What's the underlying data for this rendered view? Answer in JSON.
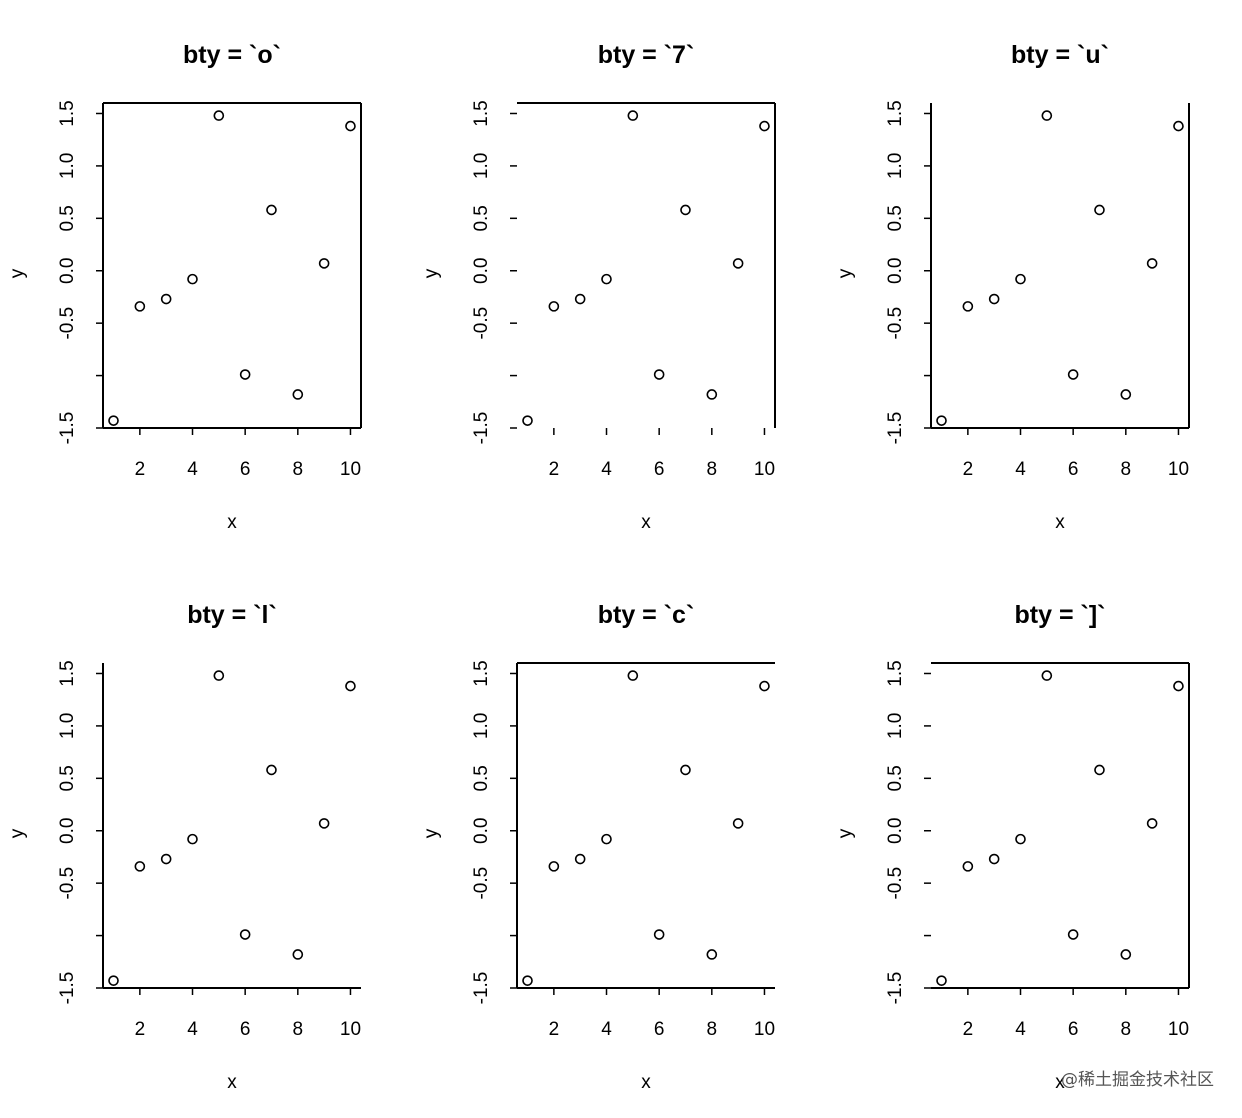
{
  "chart_data": [
    {
      "type": "scatter",
      "title": "bty = `o`",
      "bty": "o",
      "xlabel": "x",
      "ylabel": "y",
      "xlim": [
        0.6,
        10.4
      ],
      "ylim": [
        -1.5,
        1.6
      ],
      "xticks": [
        2,
        4,
        6,
        8,
        10
      ],
      "xtick_labels": [
        "2",
        "4",
        "6",
        "8",
        "10"
      ],
      "yticks": [
        -1.5,
        -1.0,
        -0.5,
        0.0,
        0.5,
        1.0,
        1.5
      ],
      "ytick_labels": [
        "-1.5",
        "",
        "-0.5",
        "0.0",
        "0.5",
        "1.0",
        "1.5"
      ],
      "x": [
        1,
        2,
        3,
        4,
        5,
        6,
        7,
        8,
        9,
        10
      ],
      "y": [
        -1.43,
        -0.34,
        -0.27,
        -0.08,
        1.48,
        -0.99,
        0.58,
        -1.18,
        0.07,
        1.38
      ]
    },
    {
      "type": "scatter",
      "title": "bty = `7`",
      "bty": "7",
      "xlabel": "x",
      "ylabel": "y",
      "xlim": [
        0.6,
        10.4
      ],
      "ylim": [
        -1.5,
        1.6
      ],
      "xticks": [
        2,
        4,
        6,
        8,
        10
      ],
      "xtick_labels": [
        "2",
        "4",
        "6",
        "8",
        "10"
      ],
      "yticks": [
        -1.5,
        -1.0,
        -0.5,
        0.0,
        0.5,
        1.0,
        1.5
      ],
      "ytick_labels": [
        "-1.5",
        "",
        "-0.5",
        "0.0",
        "0.5",
        "1.0",
        "1.5"
      ],
      "x": [
        1,
        2,
        3,
        4,
        5,
        6,
        7,
        8,
        9,
        10
      ],
      "y": [
        -1.43,
        -0.34,
        -0.27,
        -0.08,
        1.48,
        -0.99,
        0.58,
        -1.18,
        0.07,
        1.38
      ]
    },
    {
      "type": "scatter",
      "title": "bty = `u`",
      "bty": "u",
      "xlabel": "x",
      "ylabel": "y",
      "xlim": [
        0.6,
        10.4
      ],
      "ylim": [
        -1.5,
        1.6
      ],
      "xticks": [
        2,
        4,
        6,
        8,
        10
      ],
      "xtick_labels": [
        "2",
        "4",
        "6",
        "8",
        "10"
      ],
      "yticks": [
        -1.5,
        -1.0,
        -0.5,
        0.0,
        0.5,
        1.0,
        1.5
      ],
      "ytick_labels": [
        "-1.5",
        "",
        "-0.5",
        "0.0",
        "0.5",
        "1.0",
        "1.5"
      ],
      "x": [
        1,
        2,
        3,
        4,
        5,
        6,
        7,
        8,
        9,
        10
      ],
      "y": [
        -1.43,
        -0.34,
        -0.27,
        -0.08,
        1.48,
        -0.99,
        0.58,
        -1.18,
        0.07,
        1.38
      ]
    },
    {
      "type": "scatter",
      "title": "bty = `l`",
      "bty": "l",
      "xlabel": "x",
      "ylabel": "y",
      "xlim": [
        0.6,
        10.4
      ],
      "ylim": [
        -1.5,
        1.6
      ],
      "xticks": [
        2,
        4,
        6,
        8,
        10
      ],
      "xtick_labels": [
        "2",
        "4",
        "6",
        "8",
        "10"
      ],
      "yticks": [
        -1.5,
        -1.0,
        -0.5,
        0.0,
        0.5,
        1.0,
        1.5
      ],
      "ytick_labels": [
        "-1.5",
        "",
        "-0.5",
        "0.0",
        "0.5",
        "1.0",
        "1.5"
      ],
      "x": [
        1,
        2,
        3,
        4,
        5,
        6,
        7,
        8,
        9,
        10
      ],
      "y": [
        -1.43,
        -0.34,
        -0.27,
        -0.08,
        1.48,
        -0.99,
        0.58,
        -1.18,
        0.07,
        1.38
      ]
    },
    {
      "type": "scatter",
      "title": "bty = `c`",
      "bty": "c",
      "xlabel": "x",
      "ylabel": "y",
      "xlim": [
        0.6,
        10.4
      ],
      "ylim": [
        -1.5,
        1.6
      ],
      "xticks": [
        2,
        4,
        6,
        8,
        10
      ],
      "xtick_labels": [
        "2",
        "4",
        "6",
        "8",
        "10"
      ],
      "yticks": [
        -1.5,
        -1.0,
        -0.5,
        0.0,
        0.5,
        1.0,
        1.5
      ],
      "ytick_labels": [
        "-1.5",
        "",
        "-0.5",
        "0.0",
        "0.5",
        "1.0",
        "1.5"
      ],
      "x": [
        1,
        2,
        3,
        4,
        5,
        6,
        7,
        8,
        9,
        10
      ],
      "y": [
        -1.43,
        -0.34,
        -0.27,
        -0.08,
        1.48,
        -0.99,
        0.58,
        -1.18,
        0.07,
        1.38
      ]
    },
    {
      "type": "scatter",
      "title": "bty = `]`",
      "bty": "]",
      "xlabel": "x",
      "ylabel": "y",
      "xlim": [
        0.6,
        10.4
      ],
      "ylim": [
        -1.5,
        1.6
      ],
      "xticks": [
        2,
        4,
        6,
        8,
        10
      ],
      "xtick_labels": [
        "2",
        "4",
        "6",
        "8",
        "10"
      ],
      "yticks": [
        -1.5,
        -1.0,
        -0.5,
        0.0,
        0.5,
        1.0,
        1.5
      ],
      "ytick_labels": [
        "-1.5",
        "",
        "-0.5",
        "0.0",
        "0.5",
        "1.0",
        "1.5"
      ],
      "x": [
        1,
        2,
        3,
        4,
        5,
        6,
        7,
        8,
        9,
        10
      ],
      "y": [
        -1.43,
        -0.34,
        -0.27,
        -0.08,
        1.48,
        -0.99,
        0.58,
        -1.18,
        0.07,
        1.38
      ]
    }
  ],
  "watermark": "@稀土掘金技术社区"
}
